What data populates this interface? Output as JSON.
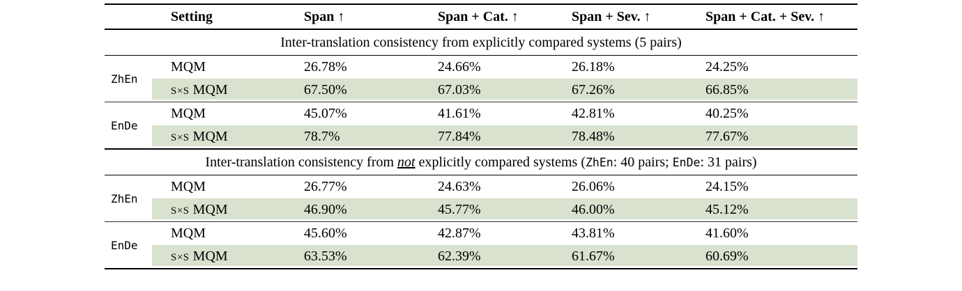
{
  "table": {
    "highlight_color": "#d8e2cf",
    "columns": {
      "setting": "Setting",
      "span": "Span ↑",
      "span_cat": "Span + Cat. ↑",
      "span_sev": "Span + Sev. ↑",
      "span_cat_sev": "Span + Cat. + Sev. ↑"
    },
    "sections": [
      {
        "title": "Inter-translation consistency from explicitly compared systems (5 pairs)",
        "groups": [
          {
            "lang": "ZhEn",
            "mqm": {
              "label": "MQM",
              "values": [
                "26.78%",
                "24.66%",
                "26.18%",
                "24.25%"
              ]
            },
            "sxs": {
              "label_sc": "S×S",
              "label_rest": " MQM",
              "values": [
                "67.50%",
                "67.03%",
                "67.26%",
                "66.85%"
              ]
            }
          },
          {
            "lang": "EnDe",
            "mqm": {
              "label": "MQM",
              "values": [
                "45.07%",
                "41.61%",
                "42.81%",
                "40.25%"
              ]
            },
            "sxs": {
              "label_sc": "S×S",
              "label_rest": " MQM",
              "values": [
                "78.7%",
                "77.84%",
                "78.48%",
                "77.67%"
              ]
            }
          }
        ]
      },
      {
        "title_parts": {
          "pre": "Inter-translation consistency from ",
          "emph": "not",
          "mid": " explicitly compared systems (",
          "lang1": "ZhEn",
          "mid2": ": 40 pairs; ",
          "lang2": "EnDe",
          "post": ": 31 pairs)"
        },
        "groups": [
          {
            "lang": "ZhEn",
            "mqm": {
              "label": "MQM",
              "values": [
                "26.77%",
                "24.63%",
                "26.06%",
                "24.15%"
              ]
            },
            "sxs": {
              "label_sc": "S×S",
              "label_rest": " MQM",
              "values": [
                "46.90%",
                "45.77%",
                "46.00%",
                "45.12%"
              ]
            }
          },
          {
            "lang": "EnDe",
            "mqm": {
              "label": "MQM",
              "values": [
                "45.60%",
                "42.87%",
                "43.81%",
                "41.60%"
              ]
            },
            "sxs": {
              "label_sc": "S×S",
              "label_rest": " MQM",
              "values": [
                "63.53%",
                "62.39%",
                "61.67%",
                "60.69%"
              ]
            }
          }
        ]
      }
    ]
  }
}
